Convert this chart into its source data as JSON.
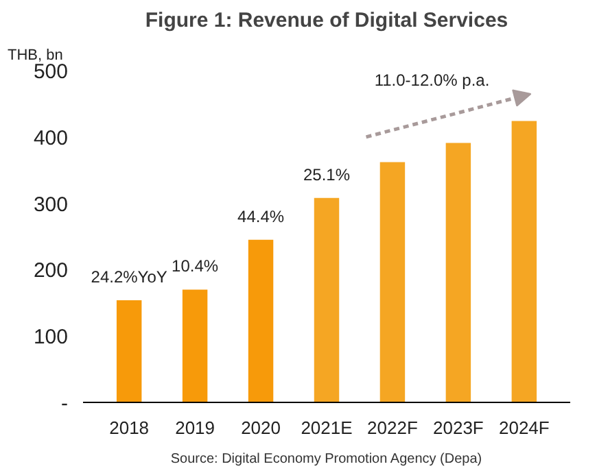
{
  "chart_data": {
    "type": "bar",
    "title": "Figure 1: Revenue of Digital Services",
    "ylabel": "THB, bn",
    "categories": [
      "2018",
      "2019",
      "2020",
      "2021E",
      "2022F",
      "2023F",
      "2024F"
    ],
    "values": [
      154,
      170,
      245,
      308,
      362,
      391,
      424
    ],
    "colors": [
      "#f79a0a",
      "#f79a0a",
      "#f79a0a",
      "#f5a623",
      "#f5a623",
      "#f5a623",
      "#f5a623"
    ],
    "ylim": [
      0,
      500
    ],
    "yticks": [
      {
        "value": 0,
        "label": "-"
      },
      100,
      200,
      300,
      400,
      500
    ],
    "annotations": [
      {
        "text": "24.2%YoY",
        "x": "2018",
        "y": 154
      },
      {
        "text": "10.4%",
        "x": "2019",
        "y": 170
      },
      {
        "text": "44.4%",
        "x": "2020",
        "y": 245
      },
      {
        "text": "25.1%",
        "x": "2021E",
        "y": 308
      },
      "11.0-12.0% p.a.",
      "Source: Digital Economy Promotion Agency (Depa)"
    ]
  }
}
